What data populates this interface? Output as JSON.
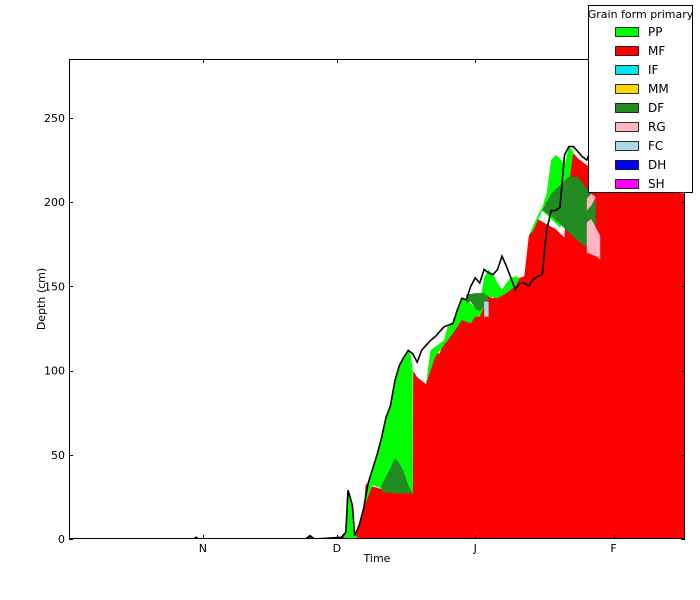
{
  "chart_data": {
    "type": "area",
    "title": "",
    "xlabel": "Time",
    "ylabel": "Depth (cm)",
    "ylim": [
      0,
      285
    ],
    "yticks": [
      0,
      50,
      100,
      150,
      200,
      250
    ],
    "xlim": [
      0,
      138
    ],
    "xticks": [
      {
        "x": 30,
        "label": "N"
      },
      {
        "x": 60,
        "label": "D"
      },
      {
        "x": 91,
        "label": "J"
      },
      {
        "x": 122,
        "label": "F"
      }
    ],
    "grid": false,
    "legend": {
      "title": "Grain form primary",
      "placement": "top-right",
      "entries": [
        {
          "name": "PP",
          "color": "#00ff00"
        },
        {
          "name": "MF",
          "color": "#ff0000"
        },
        {
          "name": "IF",
          "color": "#00e5ee"
        },
        {
          "name": "MM",
          "color": "#ffd700"
        },
        {
          "name": "DF",
          "color": "#228b22"
        },
        {
          "name": "RG",
          "color": "#ffb6c1"
        },
        {
          "name": "FC",
          "color": "#add8e6"
        },
        {
          "name": "DH",
          "color": "#0000ff"
        },
        {
          "name": "SH",
          "color": "#ff00ff"
        }
      ]
    },
    "series": [
      {
        "name": "MF",
        "color": "#ff0000",
        "points": [
          [
            0,
            0
          ],
          [
            28,
            0
          ],
          [
            28.5,
            1
          ],
          [
            29,
            0
          ],
          [
            53,
            0
          ],
          [
            54,
            2
          ],
          [
            55,
            0
          ],
          [
            60,
            0
          ],
          [
            61,
            1
          ],
          [
            62,
            4
          ],
          [
            62.5,
            28
          ],
          [
            63.5,
            20
          ],
          [
            64,
            0
          ],
          [
            65,
            8
          ],
          [
            66,
            18
          ],
          [
            66.5,
            33
          ],
          [
            67,
            32
          ],
          [
            71,
            29
          ],
          [
            75,
            27
          ],
          [
            77,
            27
          ],
          [
            77.1,
            100
          ],
          [
            78,
            96
          ],
          [
            80,
            92
          ],
          [
            81,
            112
          ],
          [
            83,
            110
          ],
          [
            84,
            118
          ],
          [
            85,
            127
          ],
          [
            86,
            122
          ],
          [
            87,
            136
          ],
          [
            89,
            142
          ],
          [
            90,
            140
          ],
          [
            91,
            137
          ],
          [
            91.5,
            136
          ],
          [
            92,
            132
          ],
          [
            93,
            148
          ],
          [
            94,
            144
          ],
          [
            95,
            143
          ],
          [
            97,
            147
          ],
          [
            98,
            150
          ],
          [
            100,
            152
          ],
          [
            101,
            155
          ],
          [
            102,
            156
          ],
          [
            103,
            180
          ],
          [
            104,
            185
          ],
          [
            105,
            190
          ],
          [
            107,
            187
          ],
          [
            109,
            184
          ],
          [
            111,
            179
          ],
          [
            112,
            232
          ],
          [
            114,
            226
          ],
          [
            116,
            222
          ],
          [
            118,
            220
          ],
          [
            120,
            217
          ],
          [
            122,
            215
          ],
          [
            124,
            214
          ],
          [
            126,
            212
          ],
          [
            128,
            210
          ],
          [
            130,
            209
          ],
          [
            132,
            208
          ],
          [
            134,
            207
          ],
          [
            136,
            206
          ],
          [
            138,
            205
          ],
          [
            138,
            0
          ]
        ]
      },
      {
        "name": "PP",
        "color": "#00ff00",
        "points": [
          [
            61,
            0
          ],
          [
            61.5,
            0
          ],
          [
            62,
            4
          ],
          [
            62.5,
            29
          ],
          [
            63.5,
            20
          ],
          [
            64,
            2
          ],
          [
            64.5,
            2
          ],
          [
            64.5,
            0
          ]
        ]
      },
      {
        "name": "PP",
        "color": "#00ff00",
        "points": [
          [
            66,
            18
          ],
          [
            67,
            33
          ],
          [
            69,
            50
          ],
          [
            70,
            60
          ],
          [
            71,
            72
          ],
          [
            72,
            79
          ],
          [
            73,
            94
          ],
          [
            74,
            103
          ],
          [
            75,
            108
          ],
          [
            76,
            112
          ],
          [
            76.5,
            110
          ],
          [
            77,
            100
          ],
          [
            77,
            27
          ],
          [
            75,
            27
          ],
          [
            73,
            28
          ],
          [
            71,
            29
          ],
          [
            68,
            32
          ],
          [
            66,
            18
          ]
        ]
      },
      {
        "name": "DF",
        "color": "#228b22",
        "points": [
          [
            70,
            32
          ],
          [
            72,
            42
          ],
          [
            73,
            48
          ],
          [
            74,
            45
          ],
          [
            75,
            40
          ],
          [
            76,
            32
          ],
          [
            77,
            27
          ],
          [
            73,
            27
          ],
          [
            70,
            28
          ]
        ]
      },
      {
        "name": "PP",
        "color": "#00ff00",
        "points": [
          [
            80,
            92
          ],
          [
            81,
            112
          ],
          [
            82,
            114
          ],
          [
            84,
            118
          ],
          [
            85,
            127
          ],
          [
            86,
            128
          ],
          [
            87,
            136
          ],
          [
            88,
            143
          ],
          [
            89,
            142
          ],
          [
            90,
            140
          ],
          [
            91,
            137
          ],
          [
            91,
            132
          ],
          [
            90,
            128
          ],
          [
            88,
            130
          ],
          [
            86,
            122
          ],
          [
            84,
            115
          ],
          [
            82,
            108
          ],
          [
            80,
            92
          ]
        ]
      },
      {
        "name": "PP",
        "color": "#00ff00",
        "points": [
          [
            91,
            137
          ],
          [
            92,
            140
          ],
          [
            93,
            155
          ],
          [
            94,
            160
          ],
          [
            95,
            157
          ],
          [
            96,
            152
          ],
          [
            97,
            148
          ],
          [
            98,
            152
          ],
          [
            99,
            155
          ],
          [
            100,
            156
          ],
          [
            101,
            155
          ],
          [
            100,
            150
          ],
          [
            98,
            146
          ],
          [
            96,
            143
          ],
          [
            94,
            144
          ],
          [
            92,
            132
          ],
          [
            91,
            132
          ]
        ]
      },
      {
        "name": "DF",
        "color": "#228b22",
        "points": [
          [
            89,
            140
          ],
          [
            90,
            141
          ],
          [
            91,
            137
          ],
          [
            92,
            135
          ],
          [
            93,
            138
          ],
          [
            94,
            144
          ],
          [
            93,
            146
          ],
          [
            91,
            146
          ],
          [
            89,
            145
          ]
        ]
      },
      {
        "name": "FC",
        "color": "#add8e6",
        "points": [
          [
            93,
            132
          ],
          [
            94,
            132
          ],
          [
            94,
            141
          ],
          [
            93,
            141
          ]
        ]
      },
      {
        "name": "PP",
        "color": "#00ff00",
        "points": [
          [
            103,
            180
          ],
          [
            104,
            186
          ],
          [
            105,
            192
          ],
          [
            106,
            197
          ],
          [
            107,
            205
          ],
          [
            108,
            225
          ],
          [
            109,
            228
          ],
          [
            110,
            226
          ],
          [
            111,
            222
          ],
          [
            112,
            233
          ],
          [
            113,
            230
          ],
          [
            112,
            210
          ],
          [
            111,
            190
          ],
          [
            110,
            185
          ],
          [
            108,
            190
          ],
          [
            106,
            195
          ],
          [
            104,
            183
          ],
          [
            103,
            180
          ]
        ]
      },
      {
        "name": "DF",
        "color": "#228b22",
        "points": [
          [
            106,
            195
          ],
          [
            108,
            205
          ],
          [
            110,
            210
          ],
          [
            112,
            215
          ],
          [
            114,
            215
          ],
          [
            116,
            208
          ],
          [
            118,
            200
          ],
          [
            118,
            180
          ],
          [
            116,
            173
          ],
          [
            114,
            177
          ],
          [
            112,
            182
          ],
          [
            110,
            187
          ],
          [
            108,
            192
          ]
        ]
      },
      {
        "name": "RG",
        "color": "#ffb6c1",
        "points": [
          [
            116,
            170
          ],
          [
            118,
            168
          ],
          [
            119,
            166
          ],
          [
            119,
            180
          ],
          [
            118,
            185
          ],
          [
            117,
            190
          ],
          [
            116,
            188
          ]
        ]
      },
      {
        "name": "RG",
        "color": "#ffb6c1",
        "points": [
          [
            116,
            195
          ],
          [
            117,
            198
          ],
          [
            118,
            203
          ],
          [
            117,
            205
          ],
          [
            116,
            202
          ]
        ]
      },
      {
        "name": "PP",
        "color": "#00ff00",
        "points": [
          [
            118,
            220
          ],
          [
            119,
            230
          ],
          [
            120,
            240
          ],
          [
            121,
            243
          ],
          [
            122,
            246
          ],
          [
            123,
            252
          ],
          [
            124,
            256
          ],
          [
            126,
            260
          ],
          [
            128,
            262
          ],
          [
            130,
            265
          ],
          [
            133,
            268
          ],
          [
            136,
            272
          ],
          [
            138,
            274
          ],
          [
            138,
            232
          ],
          [
            134,
            228
          ],
          [
            130,
            225
          ],
          [
            126,
            225
          ],
          [
            122,
            222
          ],
          [
            118,
            219
          ]
        ]
      }
    ],
    "outline": [
      [
        0,
        0
      ],
      [
        28,
        0
      ],
      [
        28.5,
        1
      ],
      [
        29,
        0
      ],
      [
        53,
        0
      ],
      [
        54,
        2
      ],
      [
        55,
        0
      ],
      [
        61,
        1
      ],
      [
        62,
        4
      ],
      [
        62.5,
        29
      ],
      [
        63.5,
        20
      ],
      [
        64,
        2
      ],
      [
        65,
        8
      ],
      [
        66,
        18
      ],
      [
        67,
        33
      ],
      [
        69,
        50
      ],
      [
        70,
        60
      ],
      [
        71,
        72
      ],
      [
        72,
        79
      ],
      [
        73,
        94
      ],
      [
        74,
        103
      ],
      [
        75,
        108
      ],
      [
        76,
        112
      ],
      [
        77,
        110
      ],
      [
        78,
        105
      ],
      [
        79,
        112
      ],
      [
        80,
        115
      ],
      [
        81,
        118
      ],
      [
        82,
        120
      ],
      [
        84,
        126
      ],
      [
        85,
        127
      ],
      [
        86,
        128
      ],
      [
        87,
        136
      ],
      [
        88,
        143
      ],
      [
        89,
        142
      ],
      [
        90,
        150
      ],
      [
        91,
        155
      ],
      [
        92,
        152
      ],
      [
        93,
        160
      ],
      [
        94,
        158
      ],
      [
        95,
        157
      ],
      [
        96,
        160
      ],
      [
        97,
        168
      ],
      [
        98,
        162
      ],
      [
        99,
        155
      ],
      [
        100,
        148
      ],
      [
        101,
        152
      ],
      [
        102,
        152
      ],
      [
        103,
        150
      ],
      [
        104,
        154
      ],
      [
        105,
        156
      ],
      [
        106,
        157
      ],
      [
        107,
        183
      ],
      [
        108,
        195
      ],
      [
        109,
        195
      ],
      [
        110,
        197
      ],
      [
        111,
        228
      ],
      [
        112,
        233
      ],
      [
        113,
        233
      ],
      [
        114,
        230
      ],
      [
        115,
        227
      ],
      [
        116,
        225
      ],
      [
        117,
        232
      ],
      [
        118,
        240
      ],
      [
        119,
        244
      ],
      [
        120,
        247
      ],
      [
        121,
        250
      ],
      [
        122,
        252
      ],
      [
        124,
        256
      ],
      [
        126,
        260
      ],
      [
        128,
        262
      ],
      [
        130,
        265
      ],
      [
        133,
        268
      ],
      [
        136,
        272
      ],
      [
        138,
        274
      ]
    ]
  }
}
